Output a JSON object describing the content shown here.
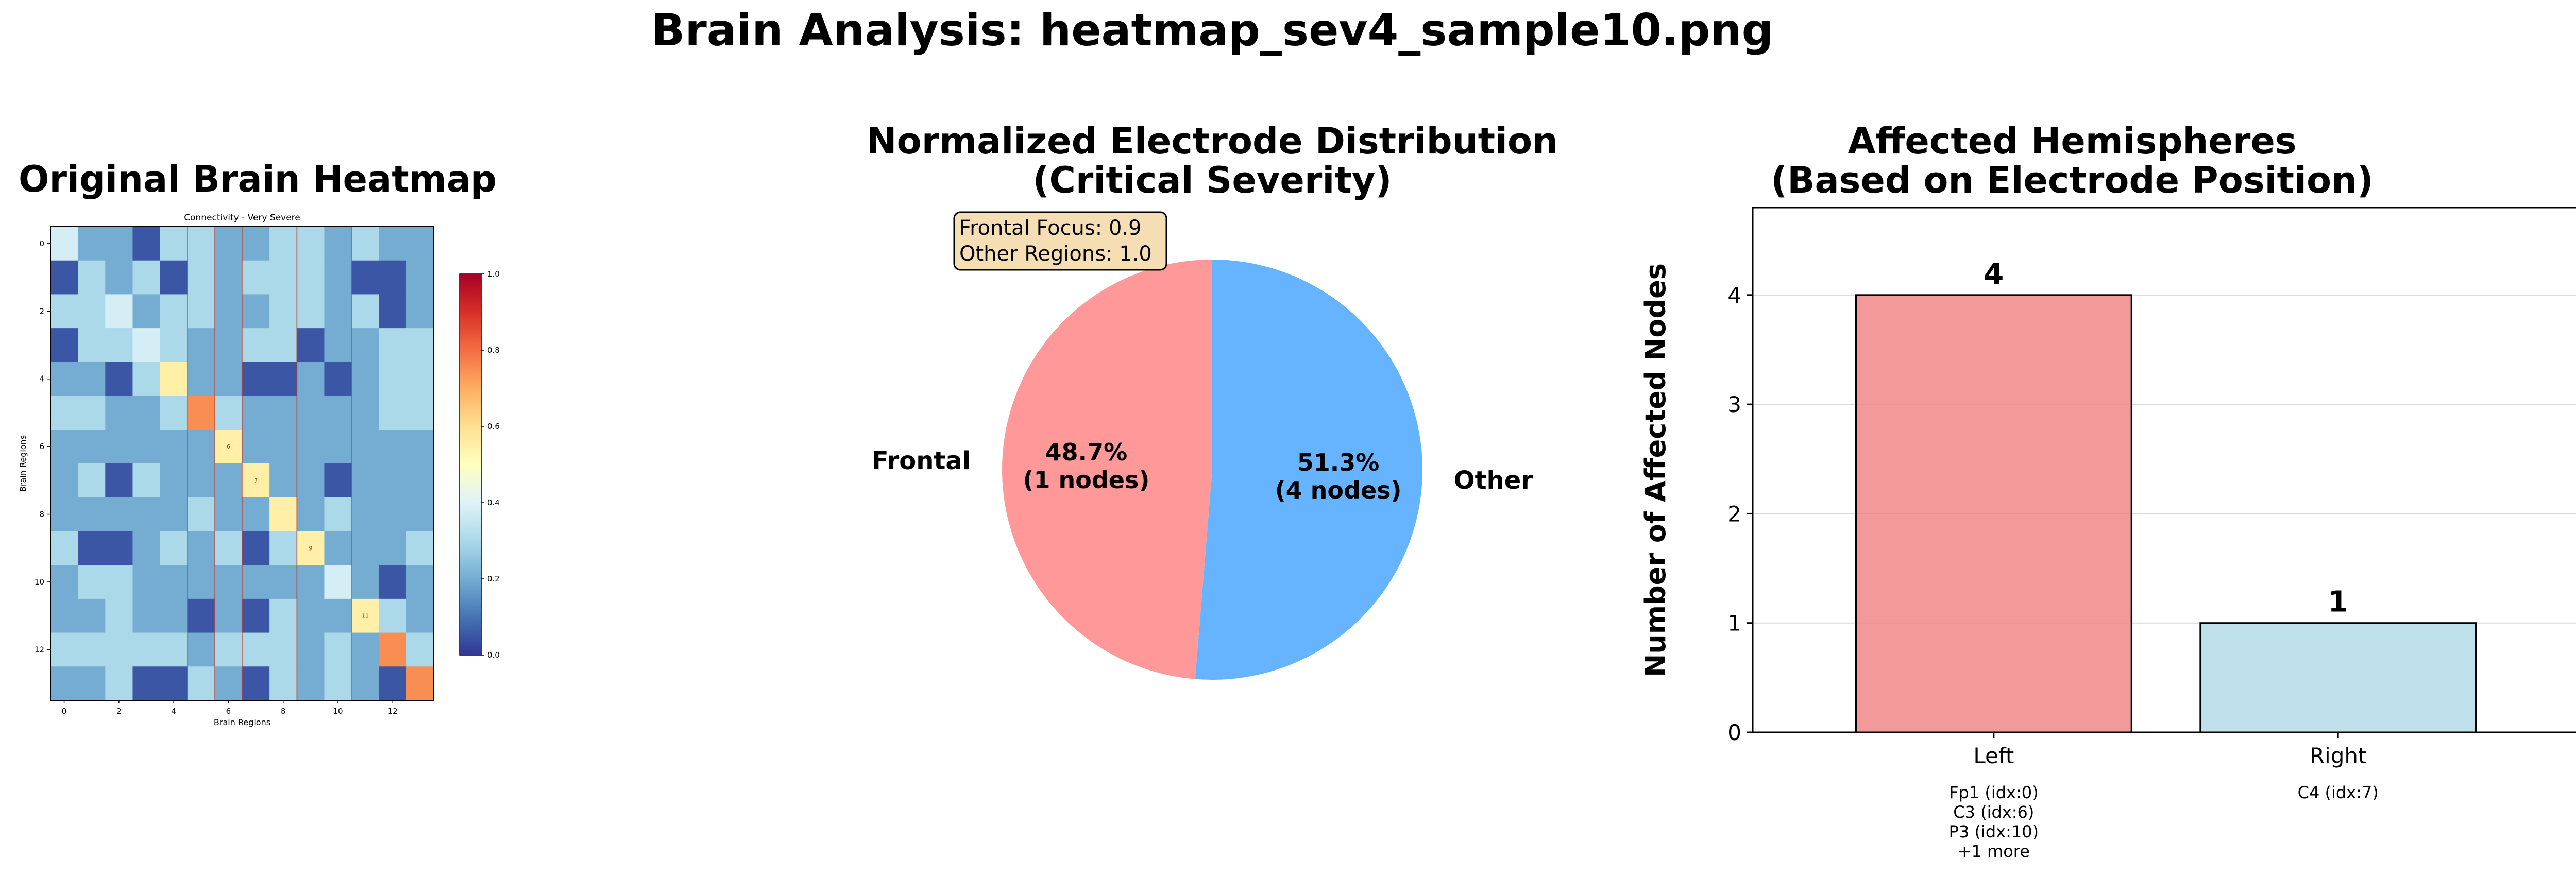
{
  "suptitle": "Brain Analysis: heatmap_sev4_sample10.png",
  "colors": {
    "frontal": "#ff9999",
    "other": "#66b3ff",
    "left_bar": "#f08080",
    "right_bar": "#add8e6",
    "bbox_fill": "#f5deb3"
  },
  "chart_data": [
    {
      "type": "heatmap",
      "panel_title": "Original Brain Heatmap",
      "title": "Connectivity - Very Severe",
      "xlabel": "Brain Regions",
      "ylabel": "Brain Regions",
      "x_ticks": [
        "0",
        "2",
        "4",
        "6",
        "8",
        "10",
        "12"
      ],
      "y_ticks": [
        "0",
        "2",
        "4",
        "6",
        "8",
        "10",
        "12"
      ],
      "colorbar_ticks": [
        "0.0",
        "0.2",
        "0.4",
        "0.6",
        "0.8",
        "1.0"
      ],
      "vmin": 0,
      "vmax": 1,
      "colormap": "RdYlBu_r",
      "values": [
        [
          0.38,
          0.2,
          0.2,
          0.05,
          0.3,
          0.3,
          0.2,
          0.2,
          0.3,
          0.3,
          0.2,
          0.3,
          0.2,
          0.2
        ],
        [
          0.05,
          0.3,
          0.2,
          0.3,
          0.05,
          0.3,
          0.2,
          0.3,
          0.3,
          0.3,
          0.2,
          0.05,
          0.05,
          0.2
        ],
        [
          0.3,
          0.3,
          0.38,
          0.2,
          0.3,
          0.3,
          0.2,
          0.2,
          0.3,
          0.3,
          0.2,
          0.3,
          0.05,
          0.2
        ],
        [
          0.05,
          0.3,
          0.3,
          0.38,
          0.3,
          0.2,
          0.2,
          0.3,
          0.3,
          0.05,
          0.2,
          0.2,
          0.3,
          0.3
        ],
        [
          0.2,
          0.2,
          0.05,
          0.3,
          0.55,
          0.2,
          0.2,
          0.05,
          0.05,
          0.2,
          0.05,
          0.2,
          0.3,
          0.3
        ],
        [
          0.3,
          0.3,
          0.2,
          0.2,
          0.3,
          0.75,
          0.3,
          0.2,
          0.2,
          0.2,
          0.2,
          0.2,
          0.3,
          0.3
        ],
        [
          0.2,
          0.2,
          0.2,
          0.2,
          0.2,
          0.2,
          0.55,
          0.2,
          0.2,
          0.2,
          0.2,
          0.2,
          0.2,
          0.2
        ],
        [
          0.2,
          0.3,
          0.05,
          0.3,
          0.2,
          0.2,
          0.2,
          0.55,
          0.2,
          0.2,
          0.05,
          0.2,
          0.2,
          0.2
        ],
        [
          0.2,
          0.2,
          0.2,
          0.2,
          0.2,
          0.3,
          0.2,
          0.2,
          0.55,
          0.2,
          0.3,
          0.2,
          0.2,
          0.2
        ],
        [
          0.3,
          0.05,
          0.05,
          0.2,
          0.3,
          0.2,
          0.3,
          0.05,
          0.3,
          0.55,
          0.2,
          0.2,
          0.2,
          0.3
        ],
        [
          0.2,
          0.3,
          0.3,
          0.2,
          0.2,
          0.2,
          0.2,
          0.2,
          0.2,
          0.2,
          0.38,
          0.2,
          0.05,
          0.2
        ],
        [
          0.2,
          0.2,
          0.3,
          0.2,
          0.2,
          0.05,
          0.2,
          0.05,
          0.3,
          0.2,
          0.2,
          0.55,
          0.3,
          0.2
        ],
        [
          0.3,
          0.3,
          0.3,
          0.3,
          0.3,
          0.2,
          0.3,
          0.3,
          0.3,
          0.2,
          0.3,
          0.2,
          0.75,
          0.3
        ],
        [
          0.2,
          0.2,
          0.3,
          0.05,
          0.05,
          0.3,
          0.2,
          0.05,
          0.3,
          0.2,
          0.3,
          0.2,
          0.05,
          0.75
        ]
      ],
      "cell_labels": [
        {
          "row": 6,
          "col": 6,
          "text": "6"
        },
        {
          "row": 7,
          "col": 7,
          "text": "7"
        },
        {
          "row": 9,
          "col": 9,
          "text": "9"
        },
        {
          "row": 11,
          "col": 11,
          "text": "11"
        }
      ],
      "highlight_columns": [
        5,
        6,
        7,
        9,
        11
      ]
    },
    {
      "type": "pie",
      "title": "Normalized Electrode Distribution\n(Critical Severity)",
      "labels": [
        "Frontal",
        "Other"
      ],
      "values": [
        48.7,
        51.3
      ],
      "percent_labels": [
        "48.7%",
        "51.3%"
      ],
      "count_labels": [
        "(1 nodes)",
        "(4 nodes)"
      ],
      "colors": [
        "#ff9999",
        "#66b3ff"
      ],
      "start_angle_deg": 90,
      "annotation": [
        "Frontal Focus: 0.9",
        "Other Regions: 1.0"
      ]
    },
    {
      "type": "bar",
      "title": "Affected Hemispheres\n(Based on Electrode Position)",
      "ylabel": "Number of Affected Nodes",
      "categories": [
        "Left",
        "Right"
      ],
      "values": [
        4,
        1
      ],
      "value_labels": [
        "4",
        "1"
      ],
      "colors": [
        "#f08080",
        "#add8e6"
      ],
      "ylim": [
        0,
        4.8
      ],
      "y_ticks": [
        "0",
        "1",
        "2",
        "3",
        "4"
      ],
      "grid": "y",
      "category_details": [
        [
          "Fp1 (idx:0)",
          "C3 (idx:6)",
          "P3 (idx:10)",
          "+1 more"
        ],
        [
          "C4 (idx:7)"
        ]
      ]
    }
  ]
}
